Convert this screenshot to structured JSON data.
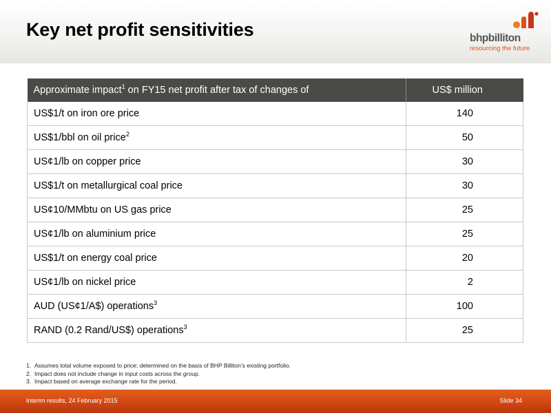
{
  "slide": {
    "title": "Key net profit sensitivities"
  },
  "logo": {
    "name": "bhpbilliton",
    "tagline": "resourcing the future"
  },
  "table": {
    "header_label": "Approximate impact",
    "header_sup": "1",
    "header_rest": " on FY15 net profit after tax of changes of",
    "header_value": "US$ million",
    "rows": [
      {
        "label": "US$1/t on iron ore price",
        "sup": "",
        "value": "140"
      },
      {
        "label": "US$1/bbl on oil price",
        "sup": "2",
        "value": "50"
      },
      {
        "label": "US¢1/lb on copper price",
        "sup": "",
        "value": "30"
      },
      {
        "label": "US$1/t on metallurgical coal price",
        "sup": "",
        "value": "30"
      },
      {
        "label": "US¢10/MMbtu on US gas price",
        "sup": "",
        "value": "25"
      },
      {
        "label": "US¢1/lb on aluminium price",
        "sup": "",
        "value": "25"
      },
      {
        "label": "US$1/t on energy coal price",
        "sup": "",
        "value": "20"
      },
      {
        "label": "US¢1/lb on nickel price",
        "sup": "",
        "value": "2"
      },
      {
        "label": "AUD (US¢1/A$) operations",
        "sup": "3",
        "value": "100"
      },
      {
        "label": "RAND (0.2 Rand/US$) operations",
        "sup": "3",
        "value": "25"
      }
    ]
  },
  "footnotes": [
    {
      "num": "1.",
      "text": "Assumes total volume exposed to price; determined on the basis of BHP Billiton’s existing portfolio."
    },
    {
      "num": "2.",
      "text": "Impact does not include change in input costs across the group."
    },
    {
      "num": "3.",
      "text": "Impact based on average exchange rate for the period."
    }
  ],
  "footer": {
    "left": "Interim results, 24 February 2015",
    "right": "Slide 34"
  },
  "colors": {
    "accent_orange": "#d9531e",
    "header_row": "#4a4a47"
  }
}
